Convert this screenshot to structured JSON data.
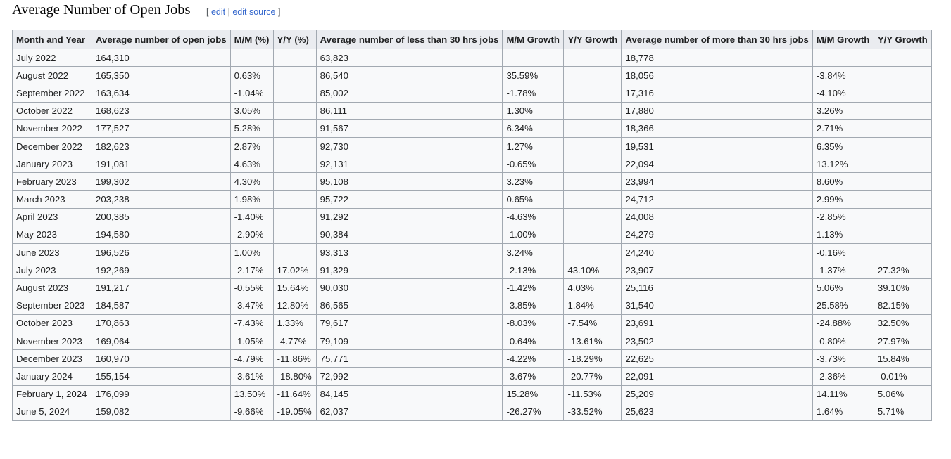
{
  "section": {
    "title": "Average Number of Open Jobs",
    "edit_open": "[ ",
    "edit_label": "edit",
    "edit_sep": " | ",
    "edit_source_label": "edit source",
    "edit_close": " ]"
  },
  "table": {
    "headers": [
      "Month and Year",
      "Average number of open jobs",
      "M/M (%)",
      "Y/Y (%)",
      "Average number of less than 30 hrs jobs",
      "M/M Growth",
      "Y/Y Growth",
      "Average number of more than 30 hrs jobs",
      "M/M Growth",
      "Y/Y Growth"
    ],
    "rows": [
      [
        "July 2022",
        "164,310",
        "",
        "",
        "63,823",
        "",
        "",
        "18,778",
        "",
        ""
      ],
      [
        "August 2022",
        "165,350",
        "0.63%",
        "",
        "86,540",
        "35.59%",
        "",
        "18,056",
        "-3.84%",
        ""
      ],
      [
        "September 2022",
        "163,634",
        "-1.04%",
        "",
        "85,002",
        "-1.78%",
        "",
        "17,316",
        "-4.10%",
        ""
      ],
      [
        "October 2022",
        "168,623",
        "3.05%",
        "",
        "86,111",
        "1.30%",
        "",
        "17,880",
        "3.26%",
        ""
      ],
      [
        "November 2022",
        "177,527",
        "5.28%",
        "",
        "91,567",
        "6.34%",
        "",
        "18,366",
        "2.71%",
        ""
      ],
      [
        "December 2022",
        "182,623",
        "2.87%",
        "",
        "92,730",
        "1.27%",
        "",
        "19,531",
        "6.35%",
        ""
      ],
      [
        "January 2023",
        "191,081",
        "4.63%",
        "",
        "92,131",
        "-0.65%",
        "",
        "22,094",
        "13.12%",
        ""
      ],
      [
        "February 2023",
        "199,302",
        "4.30%",
        "",
        "95,108",
        "3.23%",
        "",
        "23,994",
        "8.60%",
        ""
      ],
      [
        "March 2023",
        "203,238",
        "1.98%",
        "",
        "95,722",
        "0.65%",
        "",
        "24,712",
        "2.99%",
        ""
      ],
      [
        "April 2023",
        "200,385",
        "-1.40%",
        "",
        "91,292",
        "-4.63%",
        "",
        "24,008",
        "-2.85%",
        ""
      ],
      [
        "May 2023",
        "194,580",
        "-2.90%",
        "",
        "90,384",
        "-1.00%",
        "",
        "24,279",
        "1.13%",
        ""
      ],
      [
        "June 2023",
        "196,526",
        "1.00%",
        "",
        "93,313",
        "3.24%",
        "",
        "24,240",
        "-0.16%",
        ""
      ],
      [
        "July 2023",
        "192,269",
        "-2.17%",
        "17.02%",
        "91,329",
        "-2.13%",
        "43.10%",
        "23,907",
        "-1.37%",
        "27.32%"
      ],
      [
        "August 2023",
        "191,217",
        "-0.55%",
        "15.64%",
        "90,030",
        "-1.42%",
        "4.03%",
        "25,116",
        "5.06%",
        "39.10%"
      ],
      [
        "September 2023",
        "184,587",
        "-3.47%",
        "12.80%",
        "86,565",
        "-3.85%",
        "1.84%",
        "31,540",
        "25.58%",
        "82.15%"
      ],
      [
        "October 2023",
        "170,863",
        "-7.43%",
        "1.33%",
        "79,617",
        "-8.03%",
        "-7.54%",
        "23,691",
        "-24.88%",
        "32.50%"
      ],
      [
        "November 2023",
        "169,064",
        "-1.05%",
        "-4.77%",
        "79,109",
        "-0.64%",
        "-13.61%",
        "23,502",
        "-0.80%",
        "27.97%"
      ],
      [
        "December 2023",
        "160,970",
        "-4.79%",
        "-11.86%",
        "75,771",
        "-4.22%",
        "-18.29%",
        "22,625",
        "-3.73%",
        "15.84%"
      ],
      [
        "January 2024",
        "155,154",
        "-3.61%",
        "-18.80%",
        "72,992",
        "-3.67%",
        "-20.77%",
        "22,091",
        "-2.36%",
        "-0.01%"
      ],
      [
        "February 1, 2024",
        "176,099",
        "13.50%",
        "-11.64%",
        "84,145",
        "15.28%",
        "-11.53%",
        "25,209",
        "14.11%",
        "5.06%"
      ],
      [
        "June 5, 2024",
        "159,082",
        "-9.66%",
        "-19.05%",
        "62,037",
        "-26.27%",
        "-33.52%",
        "25,623",
        "1.64%",
        "5.71%"
      ]
    ]
  }
}
